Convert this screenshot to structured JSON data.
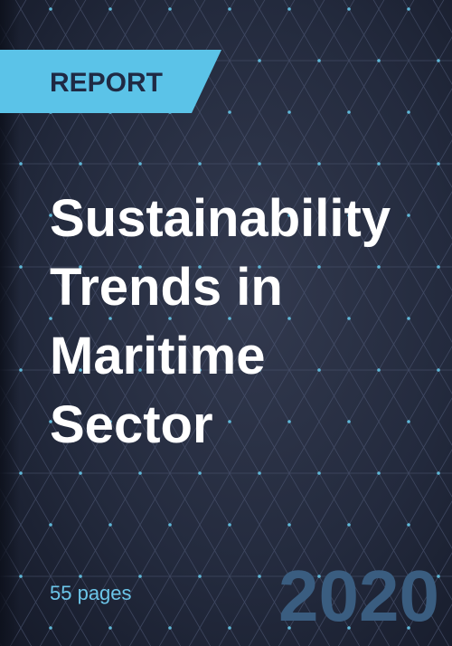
{
  "badge": "REPORT",
  "title": {
    "lines": [
      "Sustainability",
      "Trends in",
      "Maritime",
      "Sector"
    ]
  },
  "pages": "55 pages",
  "year": "2020"
}
